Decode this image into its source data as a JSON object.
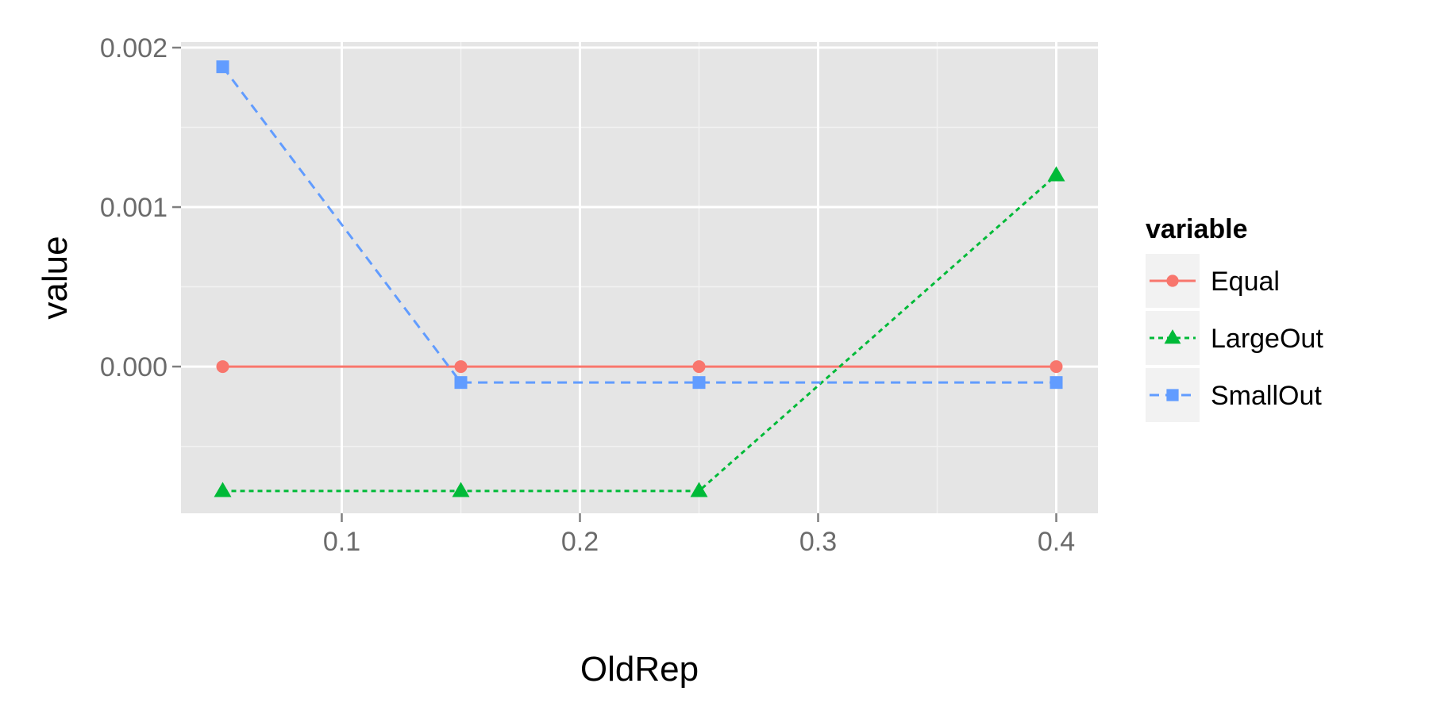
{
  "chart_data": {
    "type": "line",
    "xlabel": "OldRep",
    "ylabel": "value",
    "x": [
      0.05,
      0.15,
      0.25,
      0.4
    ],
    "xlim": [
      0.0325,
      0.4175
    ],
    "ylim": [
      -0.00092,
      0.002035
    ],
    "x_ticks": [
      0.1,
      0.2,
      0.3,
      0.4
    ],
    "x_tick_labels": [
      "0.1",
      "0.2",
      "0.3",
      "0.4"
    ],
    "y_ticks": [
      0.0,
      0.001,
      0.002
    ],
    "y_tick_labels": [
      "0.000",
      "0.001",
      "0.002"
    ],
    "grid": true,
    "legend": {
      "title": "variable",
      "placement": "right"
    },
    "series": [
      {
        "name": "Equal",
        "values": [
          0.0,
          0.0,
          0.0,
          0.0
        ],
        "color": "#F8766D",
        "marker": "circle",
        "dash": "solid"
      },
      {
        "name": "LargeOut",
        "values": [
          -0.00078,
          -0.00078,
          -0.00078,
          0.0012
        ],
        "color": "#00BA38",
        "marker": "triangle",
        "dash": "dotted"
      },
      {
        "name": "SmallOut",
        "values": [
          0.00188,
          -0.0001,
          -0.0001,
          -0.0001
        ],
        "color": "#619CFF",
        "marker": "square",
        "dash": "dashed"
      }
    ]
  },
  "style": {
    "panel_background": "#E5E5E5",
    "grid_major": "#FFFFFF",
    "grid_minor": "#F2F2F2",
    "legend_key_background": "#F2F2F2"
  }
}
